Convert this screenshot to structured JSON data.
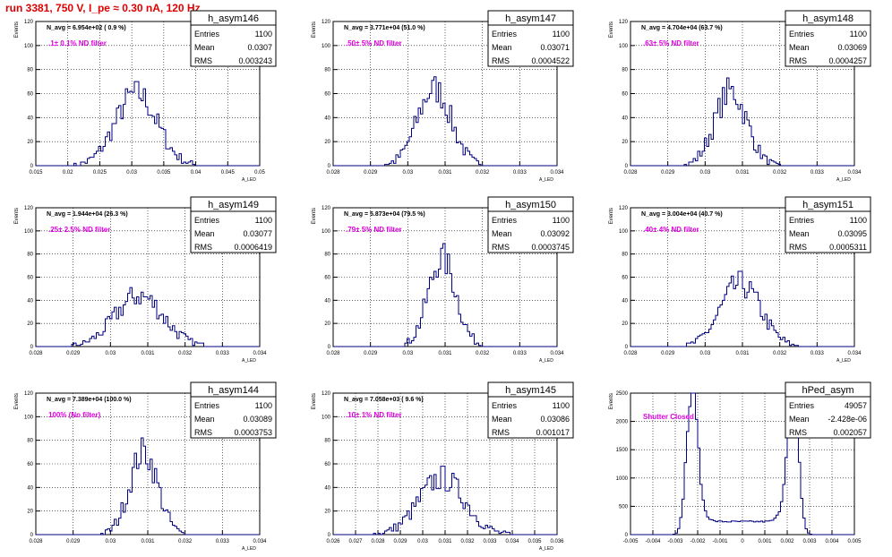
{
  "page": {
    "title": "run 3381,   750 V, I_pe ≈ 0.30 nA, 120 Hz",
    "colors": {
      "title": "#e00000",
      "histogram": "#000080",
      "annotation": "#e000e0",
      "grid": "#000000"
    }
  },
  "stats_labels": {
    "entries": "Entries",
    "mean": "Mean",
    "rms": "RMS"
  },
  "chart_data": [
    {
      "type": "bar",
      "name": "h_asym146",
      "navg": "N_avg = 6.954e+02 ( 0.9 %)",
      "filter": ".1± 0.1% ND filter",
      "entries": "1100",
      "mean": "0.0307",
      "rms": "0.003243",
      "ylabel": "Events",
      "xlabel": "A_LED",
      "xlim": [
        0.015,
        0.05
      ],
      "ylim": [
        0,
        120
      ],
      "xticks": [
        0.015,
        0.02,
        0.025,
        0.03,
        0.035,
        0.04,
        0.045,
        0.05
      ],
      "xtick_labels": [
        "0.015",
        "0.02",
        "0.025",
        "0.03",
        "0.035",
        "0.04",
        "0.045",
        "0.05"
      ],
      "yticks": [
        0,
        20,
        40,
        60,
        80,
        100,
        120
      ],
      "ytick_labels": [
        "0",
        "20",
        "40",
        "60",
        "80",
        "100",
        "120"
      ],
      "center": 0.0307,
      "sigma": 0.003243,
      "peak": 60,
      "bins": 100,
      "grid": true
    },
    {
      "type": "bar",
      "name": "h_asym147",
      "navg": "N_avg = 3.771e+04 (51.0 %)",
      "filter": ".50± 5% ND filter",
      "entries": "1100",
      "mean": "0.03071",
      "rms": "0.0004522",
      "ylabel": "Events",
      "xlabel": "A_LED",
      "xlim": [
        0.028,
        0.034
      ],
      "ylim": [
        0,
        120
      ],
      "xticks": [
        0.028,
        0.029,
        0.03,
        0.031,
        0.032,
        0.033,
        0.034
      ],
      "xtick_labels": [
        "0.028",
        "0.029",
        "0.03",
        "0.031",
        "0.032",
        "0.033",
        "0.034"
      ],
      "yticks": [
        0,
        20,
        40,
        60,
        80,
        100,
        120
      ],
      "ytick_labels": [
        "0",
        "20",
        "40",
        "60",
        "80",
        "100",
        "120"
      ],
      "center": 0.03071,
      "sigma": 0.0004522,
      "peak": 64,
      "bins": 100,
      "grid": true
    },
    {
      "type": "bar",
      "name": "h_asym148",
      "navg": "N_avg = 4.704e+04 (63.7 %)",
      "filter": ".63± 5% ND filter",
      "entries": "1100",
      "mean": "0.03069",
      "rms": "0.0004257",
      "ylabel": "Events",
      "xlabel": "A_LED",
      "xlim": [
        0.028,
        0.034
      ],
      "ylim": [
        0,
        120
      ],
      "xticks": [
        0.028,
        0.029,
        0.03,
        0.031,
        0.032,
        0.033,
        0.034
      ],
      "xtick_labels": [
        "0.028",
        "0.029",
        "0.03",
        "0.031",
        "0.032",
        "0.033",
        "0.034"
      ],
      "yticks": [
        0,
        20,
        40,
        60,
        80,
        100,
        120
      ],
      "ytick_labels": [
        "0",
        "20",
        "40",
        "60",
        "80",
        "100",
        "120"
      ],
      "center": 0.03069,
      "sigma": 0.0004257,
      "peak": 62,
      "bins": 100,
      "grid": true
    },
    {
      "type": "bar",
      "name": "h_asym149",
      "navg": "N_avg = 1.944e+04 (26.3 %)",
      "filter": ".25± 2.5% ND filter",
      "entries": "1100",
      "mean": "0.03077",
      "rms": "0.0006419",
      "ylabel": "Events",
      "xlabel": "A_LED",
      "xlim": [
        0.028,
        0.034
      ],
      "ylim": [
        0,
        120
      ],
      "xticks": [
        0.028,
        0.029,
        0.03,
        0.031,
        0.032,
        0.033,
        0.034
      ],
      "xtick_labels": [
        "0.028",
        "0.029",
        "0.03",
        "0.031",
        "0.032",
        "0.033",
        "0.034"
      ],
      "yticks": [
        0,
        20,
        40,
        60,
        80,
        100,
        120
      ],
      "ytick_labels": [
        "0",
        "20",
        "40",
        "60",
        "80",
        "100",
        "120"
      ],
      "center": 0.03077,
      "sigma": 0.0006419,
      "peak": 44,
      "bins": 100,
      "grid": true
    },
    {
      "type": "bar",
      "name": "h_asym150",
      "navg": "N_avg = 5.873e+04 (79.5 %)",
      "filter": ".79± 5% ND filter",
      "entries": "1100",
      "mean": "0.03092",
      "rms": "0.0003745",
      "ylabel": "Events",
      "xlabel": "A_LED",
      "xlim": [
        0.028,
        0.034
      ],
      "ylim": [
        0,
        120
      ],
      "xticks": [
        0.028,
        0.029,
        0.03,
        0.031,
        0.032,
        0.033,
        0.034
      ],
      "xtick_labels": [
        "0.028",
        "0.029",
        "0.03",
        "0.031",
        "0.032",
        "0.033",
        "0.034"
      ],
      "yticks": [
        0,
        20,
        40,
        60,
        80,
        100,
        120
      ],
      "ytick_labels": [
        "0",
        "20",
        "40",
        "60",
        "80",
        "100",
        "120"
      ],
      "center": 0.03092,
      "sigma": 0.0003745,
      "peak": 76,
      "bins": 100,
      "grid": true
    },
    {
      "type": "bar",
      "name": "h_asym151",
      "navg": "N_avg = 3.004e+04 (40.7 %)",
      "filter": ".40± 4% ND filter",
      "entries": "1100",
      "mean": "0.03095",
      "rms": "0.0005311",
      "ylabel": "Events",
      "xlabel": "A_LED",
      "xlim": [
        0.028,
        0.034
      ],
      "ylim": [
        0,
        120
      ],
      "xticks": [
        0.028,
        0.029,
        0.03,
        0.031,
        0.032,
        0.033,
        0.034
      ],
      "xtick_labels": [
        "0.028",
        "0.029",
        "0.03",
        "0.031",
        "0.032",
        "0.033",
        "0.034"
      ],
      "yticks": [
        0,
        20,
        40,
        60,
        80,
        100,
        120
      ],
      "ytick_labels": [
        "0",
        "20",
        "40",
        "60",
        "80",
        "100",
        "120"
      ],
      "center": 0.03095,
      "sigma": 0.0005311,
      "peak": 54,
      "bins": 100,
      "grid": true
    },
    {
      "type": "bar",
      "name": "h_asym144",
      "navg": "N_avg = 7.389e+04 (100.0 %)",
      "filter": "100% (No filter)",
      "entries": "1100",
      "mean": "0.03089",
      "rms": "0.0003753",
      "ylabel": "Events",
      "xlabel": "A_LED",
      "xlim": [
        0.028,
        0.034
      ],
      "ylim": [
        0,
        120
      ],
      "xticks": [
        0.028,
        0.029,
        0.03,
        0.031,
        0.032,
        0.033,
        0.034
      ],
      "xtick_labels": [
        "0.028",
        "0.029",
        "0.03",
        "0.031",
        "0.032",
        "0.033",
        "0.034"
      ],
      "yticks": [
        0,
        20,
        40,
        60,
        80,
        100,
        120
      ],
      "ytick_labels": [
        "0",
        "20",
        "40",
        "60",
        "80",
        "100",
        "120"
      ],
      "center": 0.03089,
      "sigma": 0.0003753,
      "peak": 70,
      "bins": 100,
      "grid": true
    },
    {
      "type": "bar",
      "name": "h_asym145",
      "navg": "N_avg = 7.058e+03 ( 9.6 %)",
      "filter": ".10± 1% ND filter",
      "entries": "1100",
      "mean": "0.03086",
      "rms": "0.001017",
      "ylabel": "Events",
      "xlabel": "A_LED",
      "xlim": [
        0.026,
        0.036
      ],
      "ylim": [
        0,
        120
      ],
      "xticks": [
        0.026,
        0.027,
        0.028,
        0.029,
        0.03,
        0.031,
        0.032,
        0.033,
        0.034,
        0.035,
        0.036
      ],
      "xtick_labels": [
        "0.026",
        "0.027",
        "0.028",
        "0.029",
        "0.03",
        "0.031",
        "0.032",
        "0.033",
        "0.034",
        "0.035",
        "0.036"
      ],
      "yticks": [
        0,
        20,
        40,
        60,
        80,
        100,
        120
      ],
      "ytick_labels": [
        "0",
        "20",
        "40",
        "60",
        "80",
        "100",
        "120"
      ],
      "center": 0.03086,
      "sigma": 0.001017,
      "peak": 48,
      "bins": 100,
      "grid": true
    },
    {
      "type": "bar",
      "name": "hPed_asym",
      "navg": "",
      "filter": "Shutter Closed",
      "entries": "49057",
      "mean": "-2.428e-06",
      "rms": "0.002057",
      "ylabel": "Events",
      "xlabel": "",
      "xlim": [
        -0.005,
        0.005
      ],
      "ylim": [
        0,
        2500
      ],
      "xticks": [
        -0.005,
        -0.004,
        -0.003,
        -0.002,
        -0.001,
        0,
        0.001,
        0.002,
        0.003,
        0.004,
        0.005
      ],
      "xtick_labels": [
        "-0.005",
        "-0.004",
        "-0.003",
        "-0.002",
        "-0.001",
        "0",
        "0.001",
        "0.002",
        "0.003",
        "0.004",
        "0.005"
      ],
      "yticks": [
        0,
        500,
        1000,
        1500,
        2000,
        2500
      ],
      "ytick_labels": [
        "0",
        "500",
        "1000",
        "1500",
        "2000",
        "2500"
      ],
      "bimodal": true,
      "peaks": [
        -0.0023,
        0.0023
      ],
      "peak": 2350,
      "baseline": 230,
      "bins": 100,
      "grid": true
    }
  ]
}
